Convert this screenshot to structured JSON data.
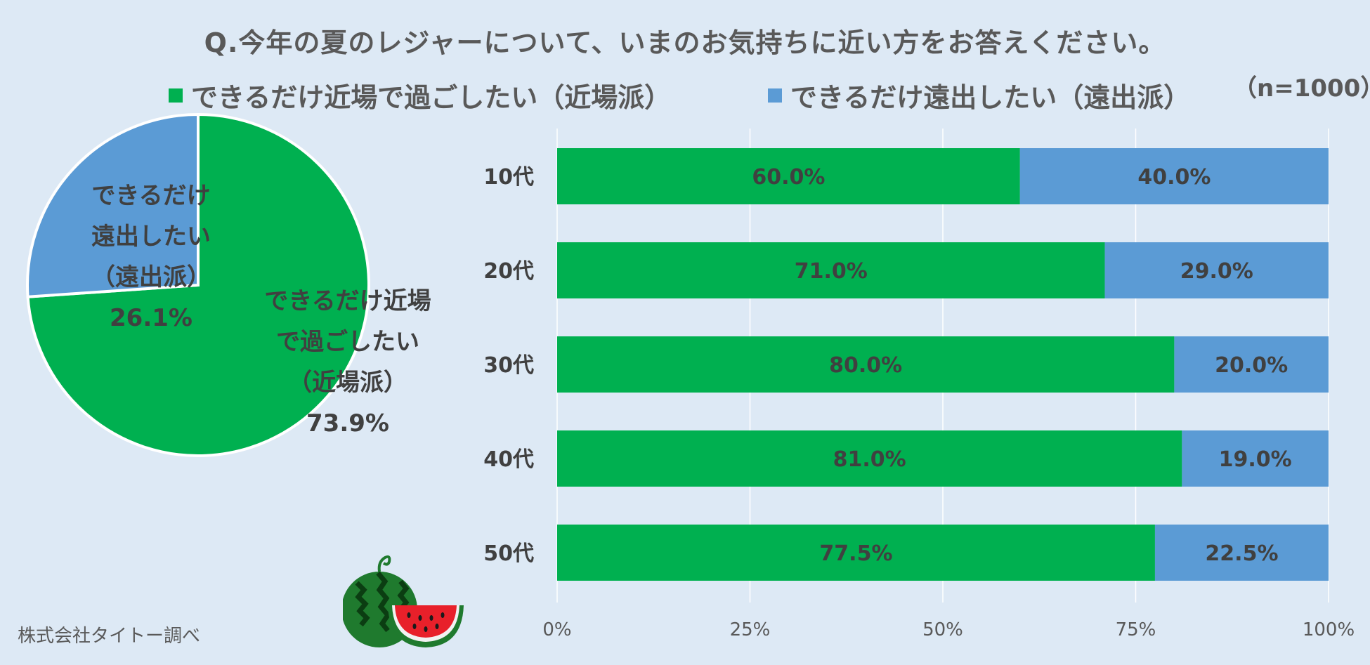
{
  "title": "Q.今年の夏のレジャーについて、いまのお気持ちに近い方をお答えください。",
  "sample_size": "（n=1000）",
  "source": "株式会社タイトー調べ",
  "colors": {
    "near": "#00b050",
    "far": "#5b9bd5",
    "text": "#404040"
  },
  "legend": [
    {
      "label": "できるだけ近場で過ごしたい（近場派）",
      "color": "#00b050"
    },
    {
      "label": "できるだけ遠出したい（遠出派）",
      "color": "#5b9bd5"
    }
  ],
  "pie_labels": {
    "far": [
      "できるだけ",
      "遠出したい",
      "（遠出派）",
      "26.1%"
    ],
    "near": [
      "できるだけ近場",
      "で過ごしたい",
      "（近場派）",
      "73.9%"
    ]
  },
  "chart_data": [
    {
      "type": "pie",
      "slices": [
        {
          "name": "できるだけ近場で過ごしたい（近場派）",
          "value": 73.9,
          "color": "#00b050"
        },
        {
          "name": "できるだけ遠出したい（遠出派）",
          "value": 26.1,
          "color": "#5b9bd5"
        }
      ]
    },
    {
      "type": "bar",
      "orientation": "horizontal",
      "stacked": true,
      "categories": [
        "10代",
        "20代",
        "30代",
        "40代",
        "50代"
      ],
      "series": [
        {
          "name": "できるだけ近場で過ごしたい（近場派）",
          "values": [
            60.0,
            71.0,
            80.0,
            81.0,
            77.5
          ],
          "labels": [
            "60.0%",
            "71.0%",
            "80.0%",
            "81.0%",
            "77.5%"
          ],
          "color": "#00b050"
        },
        {
          "name": "できるだけ遠出したい（遠出派）",
          "values": [
            40.0,
            29.0,
            20.0,
            19.0,
            22.5
          ],
          "labels": [
            "40.0%",
            "29.0%",
            "20.0%",
            "19.0%",
            "22.5%"
          ],
          "color": "#5b9bd5"
        }
      ],
      "xlim": [
        0,
        100
      ],
      "xticks": [
        "0%",
        "25%",
        "50%",
        "75%",
        "100%"
      ],
      "grid": true
    }
  ]
}
